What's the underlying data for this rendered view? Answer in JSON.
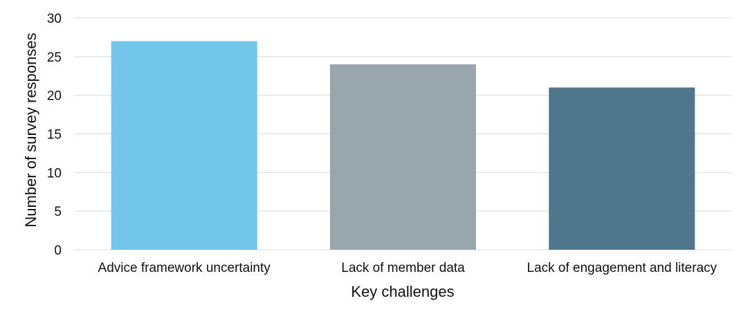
{
  "chart_data": {
    "type": "bar",
    "title": "",
    "xlabel": "Key challenges",
    "ylabel": "Number of survey responses",
    "categories": [
      "Advice framework uncertainty",
      "Lack of member data",
      "Lack of engagement and literacy"
    ],
    "values": [
      27,
      24,
      21
    ],
    "colors": [
      "#72c6e9",
      "#9aa6ae",
      "#4f768c"
    ],
    "ylim": [
      0,
      30
    ],
    "yticks": [
      0,
      5,
      10,
      15,
      20,
      25,
      30
    ],
    "grid": true,
    "legend": "none"
  }
}
